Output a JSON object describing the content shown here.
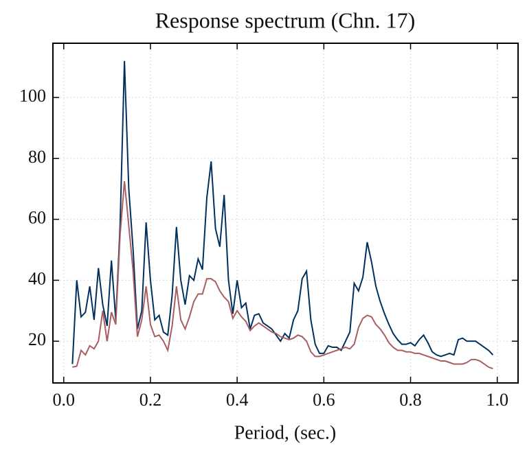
{
  "chart_data": {
    "type": "line",
    "title": "Response spectrum (Chn. 17)",
    "xlabel": "Period, (sec.)",
    "x": [
      0.02,
      0.03,
      0.04,
      0.05,
      0.06,
      0.07,
      0.08,
      0.09,
      0.1,
      0.11,
      0.12,
      0.13,
      0.14,
      0.15,
      0.16,
      0.17,
      0.18,
      0.19,
      0.2,
      0.21,
      0.22,
      0.23,
      0.24,
      0.25,
      0.26,
      0.27,
      0.28,
      0.29,
      0.3,
      0.31,
      0.32,
      0.33,
      0.34,
      0.35,
      0.36,
      0.37,
      0.38,
      0.39,
      0.4,
      0.41,
      0.42,
      0.43,
      0.44,
      0.45,
      0.46,
      0.47,
      0.48,
      0.49,
      0.5,
      0.51,
      0.52,
      0.53,
      0.54,
      0.55,
      0.56,
      0.57,
      0.58,
      0.59,
      0.6,
      0.61,
      0.62,
      0.63,
      0.64,
      0.65,
      0.66,
      0.67,
      0.68,
      0.69,
      0.7,
      0.71,
      0.72,
      0.73,
      0.74,
      0.75,
      0.76,
      0.77,
      0.78,
      0.79,
      0.8,
      0.81,
      0.82,
      0.83,
      0.84,
      0.85,
      0.86,
      0.87,
      0.88,
      0.89,
      0.9,
      0.91,
      0.92,
      0.93,
      0.94,
      0.95,
      0.96,
      0.97,
      0.98,
      0.99
    ],
    "series": [
      {
        "color": "#00305e",
        "values": [
          12.5,
          40,
          28,
          29.5,
          38,
          27,
          44,
          32,
          25,
          46.5,
          27,
          58,
          112,
          70,
          50,
          24,
          30,
          59,
          40,
          27,
          28.5,
          23,
          22,
          35,
          57.5,
          40,
          32,
          41.5,
          40,
          47,
          43.5,
          67,
          79,
          57,
          51,
          68,
          40,
          29,
          40,
          31,
          32.5,
          24,
          28.5,
          29,
          26,
          25,
          24,
          22,
          20,
          22.5,
          21,
          27,
          30,
          40.5,
          43,
          27,
          19,
          16,
          16,
          18.5,
          18,
          18,
          17,
          20,
          23,
          39,
          36.5,
          41,
          52.5,
          46,
          38,
          33,
          29,
          25.5,
          22.5,
          20.5,
          19,
          19,
          19.5,
          18.5,
          20.5,
          22,
          19.5,
          16.5,
          15.5,
          15,
          15.5,
          16,
          15.5,
          20.5,
          21,
          20,
          20,
          20,
          19,
          18,
          17,
          15.5
        ]
      },
      {
        "color": "#a85d60",
        "values": [
          11.5,
          11.8,
          17,
          15.5,
          18.5,
          17.5,
          20,
          30,
          20,
          29.5,
          25.5,
          55,
          72.5,
          58,
          43,
          21.5,
          27,
          38,
          25.5,
          21.5,
          22,
          20,
          17,
          25,
          38,
          27,
          24,
          28,
          33,
          35.5,
          35.5,
          40.5,
          40.5,
          39.5,
          36.5,
          34.5,
          33,
          27.5,
          30,
          28,
          26.5,
          23.5,
          25,
          26,
          25,
          24,
          23,
          22.5,
          21.5,
          21,
          20.5,
          21,
          22,
          21.5,
          20,
          16.5,
          15,
          15,
          15.5,
          16,
          16.5,
          17,
          17.5,
          18,
          17.5,
          19,
          24.5,
          27.5,
          28.5,
          28,
          25.5,
          24,
          22,
          19.5,
          18,
          17,
          17,
          16.5,
          16.5,
          16,
          16,
          15.5,
          15,
          14.5,
          14,
          13.5,
          13.5,
          13,
          12.5,
          12.5,
          12.5,
          13,
          14,
          14,
          13.5,
          12.5,
          11.5,
          11
        ]
      }
    ],
    "xlim": [
      -0.025,
      1.048
    ],
    "ylim": [
      6.3,
      117.8
    ],
    "xticks": [
      {
        "value": 0,
        "label": "0.0"
      },
      0.2,
      0.4,
      0.6,
      0.8,
      {
        "value": 1,
        "label": "1.0"
      }
    ],
    "yticks": [
      20,
      40,
      60,
      80,
      100
    ],
    "grid": true
  }
}
